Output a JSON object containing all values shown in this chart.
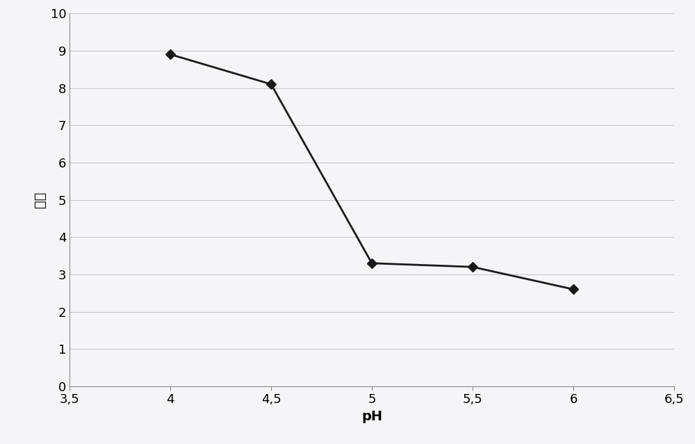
{
  "x": [
    4.0,
    4.5,
    5.0,
    5.5,
    6.0
  ],
  "y": [
    8.9,
    8.1,
    3.3,
    3.2,
    2.6
  ],
  "xlabel": "pH",
  "ylabel": "果味",
  "xlim": [
    3.5,
    6.5
  ],
  "ylim": [
    0,
    10
  ],
  "xticks": [
    3.5,
    4.0,
    4.5,
    5.0,
    5.5,
    6.0,
    6.5
  ],
  "yticks": [
    0,
    1,
    2,
    3,
    4,
    5,
    6,
    7,
    8,
    9,
    10
  ],
  "xtick_labels": [
    "3,5",
    "4",
    "4,5",
    "5",
    "5,5",
    "6",
    "6,5"
  ],
  "ytick_labels": [
    "0",
    "1",
    "2",
    "3",
    "4",
    "5",
    "6",
    "7",
    "8",
    "9",
    "10"
  ],
  "line_color": "#1a1a1a",
  "marker": "D",
  "marker_size": 7,
  "marker_facecolor": "#1a1a1a",
  "line_width": 2.0,
  "background_color": "#f5f5f8",
  "plot_bg_color": "#f5f5f8",
  "grid_color": "#c8c8cc",
  "xlabel_fontsize": 14,
  "ylabel_fontsize": 14,
  "tick_fontsize": 13,
  "spine_color": "#888888"
}
